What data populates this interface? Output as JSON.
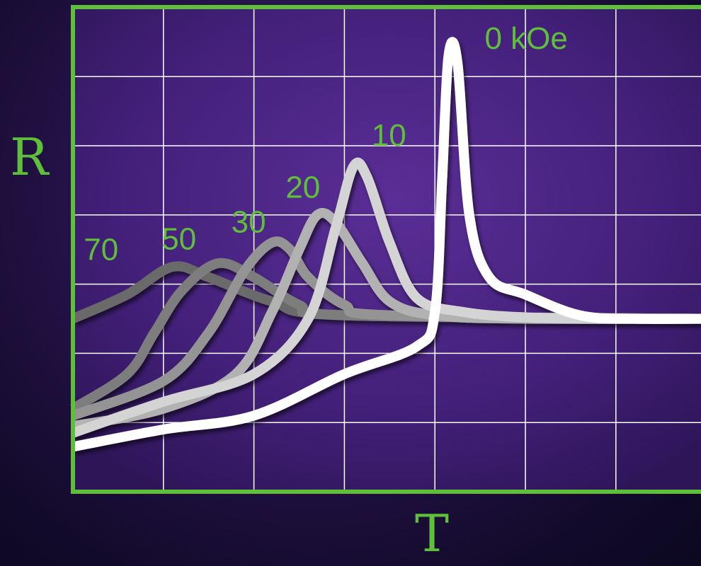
{
  "chart_data": {
    "type": "line",
    "title": "",
    "xlabel": "T",
    "ylabel": "R",
    "grid": true,
    "xlim": [
      0,
      7
    ],
    "ylim": [
      0,
      7
    ],
    "series": [
      {
        "name": "0 kOe",
        "color": "#ffffff",
        "points": [
          [
            0,
            0.65
          ],
          [
            1,
            0.9
          ],
          [
            2,
            1.1
          ],
          [
            3,
            1.7
          ],
          [
            3.8,
            2.1
          ],
          [
            4.0,
            2.6
          ],
          [
            4.08,
            4.5
          ],
          [
            4.15,
            6.3
          ],
          [
            4.25,
            6.2
          ],
          [
            4.38,
            4.0
          ],
          [
            4.6,
            3.1
          ],
          [
            5.0,
            2.85
          ],
          [
            5.6,
            2.55
          ],
          [
            6.2,
            2.5
          ],
          [
            7,
            2.5
          ]
        ]
      },
      {
        "name": "10",
        "color": "#d4d4d4",
        "points": [
          [
            0,
            0.85
          ],
          [
            1,
            1.3
          ],
          [
            2,
            1.7
          ],
          [
            2.6,
            2.5
          ],
          [
            2.9,
            3.8
          ],
          [
            3.1,
            4.7
          ],
          [
            3.25,
            4.55
          ],
          [
            3.5,
            3.6
          ],
          [
            3.8,
            2.8
          ],
          [
            4.3,
            2.6
          ],
          [
            5,
            2.52
          ],
          [
            6,
            2.5
          ],
          [
            7,
            2.5
          ]
        ]
      },
      {
        "name": "20",
        "color": "#b2b2b2",
        "points": [
          [
            0,
            0.95
          ],
          [
            1,
            1.2
          ],
          [
            1.8,
            1.7
          ],
          [
            2.2,
            2.6
          ],
          [
            2.5,
            3.5
          ],
          [
            2.7,
            4.0
          ],
          [
            2.9,
            3.9
          ],
          [
            3.2,
            3.3
          ],
          [
            3.5,
            2.75
          ],
          [
            4,
            2.55
          ],
          [
            5,
            2.5
          ],
          [
            7,
            2.5
          ]
        ]
      },
      {
        "name": "30",
        "color": "#949494",
        "points": [
          [
            0,
            1.1
          ],
          [
            1,
            1.6
          ],
          [
            1.5,
            2.3
          ],
          [
            1.9,
            3.2
          ],
          [
            2.2,
            3.6
          ],
          [
            2.4,
            3.5
          ],
          [
            2.6,
            3.1
          ],
          [
            3,
            2.7
          ],
          [
            3.5,
            2.55
          ],
          [
            7,
            2.5
          ]
        ]
      },
      {
        "name": "50",
        "color": "#7d7d7d",
        "points": [
          [
            0,
            1.2
          ],
          [
            0.6,
            1.7
          ],
          [
            0.9,
            2.3
          ],
          [
            1.2,
            2.9
          ],
          [
            1.6,
            3.3
          ],
          [
            2,
            3.1
          ],
          [
            2.5,
            2.7
          ],
          [
            3,
            2.55
          ],
          [
            7,
            2.5
          ]
        ]
      },
      {
        "name": "70",
        "color": "#6a6a6a",
        "points": [
          [
            0,
            2.5
          ],
          [
            0.6,
            2.85
          ],
          [
            1.1,
            3.25
          ],
          [
            1.5,
            3.1
          ],
          [
            2.2,
            2.75
          ],
          [
            3,
            2.55
          ],
          [
            7,
            2.5
          ]
        ]
      }
    ],
    "labels": [
      {
        "text": "0 kOe",
        "x": 4.55,
        "y": 6.4
      },
      {
        "text": "10",
        "x": 3.3,
        "y": 5.0
      },
      {
        "text": "20",
        "x": 2.35,
        "y": 4.25
      },
      {
        "text": "30",
        "x": 1.75,
        "y": 3.75
      },
      {
        "text": "50",
        "x": 0.98,
        "y": 3.5
      },
      {
        "text": "70",
        "x": 0.12,
        "y": 3.35
      }
    ],
    "colors": {
      "axis": "#5fbf3a",
      "grid": "#ffffff",
      "label": "#5fbf3a",
      "plot_bg": "#4a2482"
    }
  }
}
